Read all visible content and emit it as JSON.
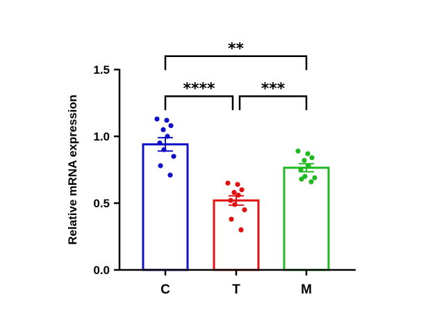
{
  "chart_data": {
    "type": "bar",
    "ylabel": "Relative mRNA expression",
    "xlabel": "",
    "title": "",
    "ylim": [
      0,
      1.5
    ],
    "yticks": [
      0.0,
      0.5,
      1.0,
      1.5
    ],
    "ytick_labels": [
      "0.0",
      "0.5",
      "1.0",
      "1.5"
    ],
    "categories": [
      "C",
      "T",
      "M"
    ],
    "values": [
      0.94,
      0.52,
      0.765
    ],
    "sem": [
      0.05,
      0.035,
      0.03
    ],
    "colors": [
      "#1010c8",
      "#e01010",
      "#20b820"
    ],
    "points": [
      [
        1.13,
        1.12,
        1.08,
        1.05,
        1.0,
        0.95,
        0.9,
        0.85,
        0.78,
        0.71
      ],
      [
        0.65,
        0.64,
        0.6,
        0.58,
        0.56,
        0.52,
        0.49,
        0.45,
        0.38,
        0.3
      ],
      [
        0.89,
        0.87,
        0.84,
        0.82,
        0.78,
        0.75,
        0.7,
        0.69,
        0.68,
        0.66
      ]
    ],
    "significance": [
      {
        "from": "C",
        "to": "T",
        "label": "****",
        "y": 1.3
      },
      {
        "from": "T",
        "to": "M",
        "label": "***",
        "y": 1.3
      },
      {
        "from": "C",
        "to": "M",
        "label": "**",
        "y": 1.6
      }
    ],
    "grid": false,
    "legend": "none"
  }
}
